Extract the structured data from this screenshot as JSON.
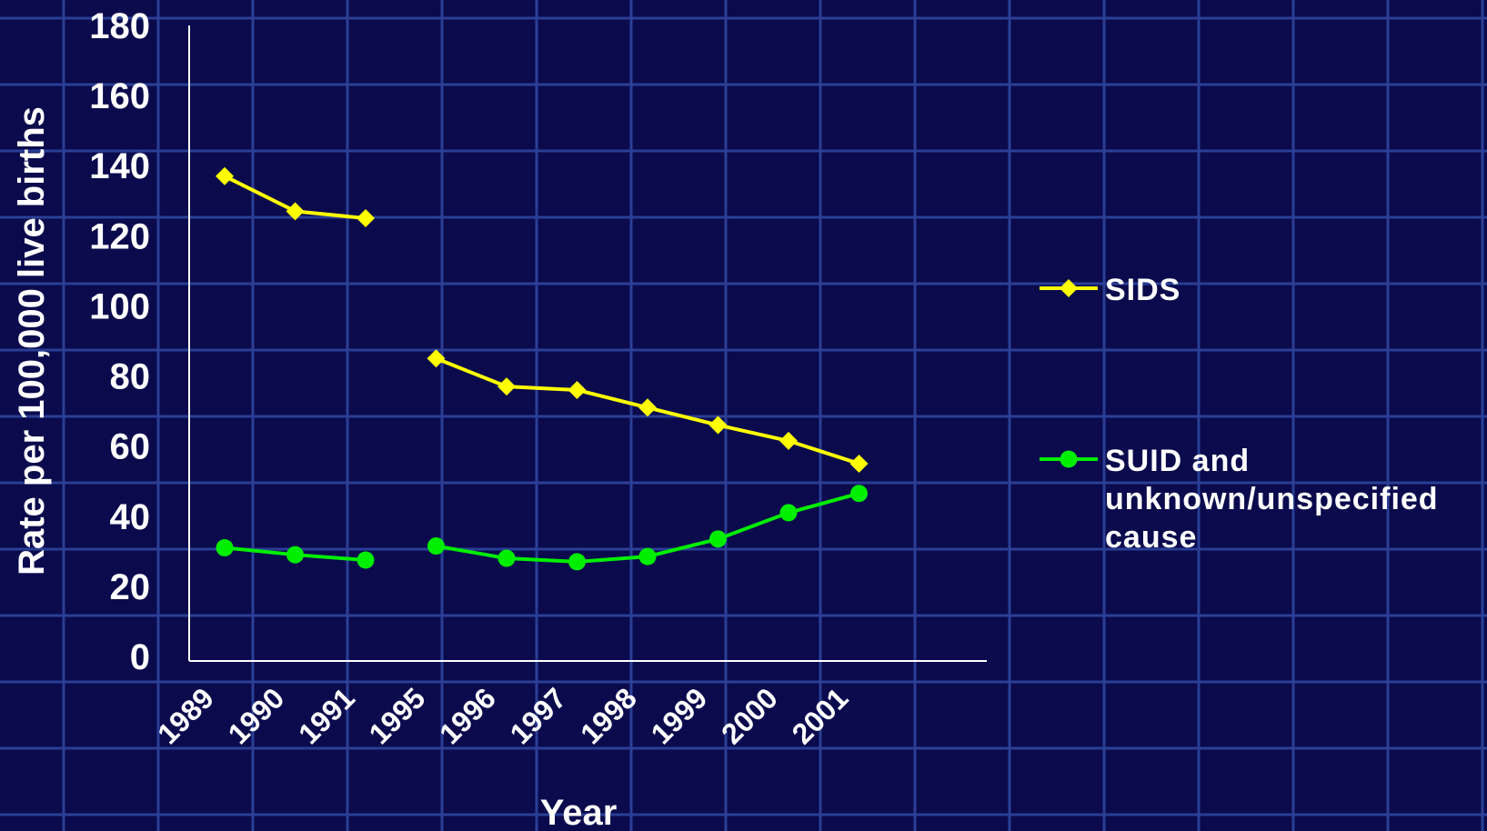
{
  "chart_data": {
    "type": "line",
    "title": "",
    "xlabel": "Year",
    "ylabel": "Rate per 100,000 live births",
    "ylim": [
      0,
      180
    ],
    "yticks": [
      0,
      20,
      40,
      60,
      80,
      100,
      120,
      140,
      160,
      180
    ],
    "categories": [
      "1989",
      "1990",
      "1991",
      "1995",
      "1996",
      "1997",
      "1998",
      "1999",
      "2000",
      "2001"
    ],
    "series": [
      {
        "name": "SIDS",
        "color": "#ffff00",
        "marker": "diamond",
        "segments": [
          [
            [
              1989,
              137
            ],
            [
              1990,
              127
            ],
            [
              1991,
              125
            ]
          ],
          [
            [
              1995,
              85
            ],
            [
              1996,
              77
            ],
            [
              1997,
              76
            ],
            [
              1998,
              71
            ],
            [
              1999,
              66
            ],
            [
              2000,
              61.5
            ],
            [
              2001,
              55
            ]
          ]
        ]
      },
      {
        "name": "SUID and unknown/unspecified cause",
        "name_lines": [
          "SUID and",
          "unknown/unspecified",
          "cause"
        ],
        "color": "#00ee00",
        "marker": "circle",
        "segments": [
          [
            [
              1989,
              31
            ],
            [
              1990,
              29
            ],
            [
              1991,
              27.5
            ]
          ],
          [
            [
              1995,
              31.5
            ],
            [
              1996,
              28
            ],
            [
              1997,
              27
            ],
            [
              1998,
              28.5
            ],
            [
              1999,
              33.5
            ],
            [
              2000,
              41
            ],
            [
              2001,
              46.5
            ]
          ]
        ]
      }
    ],
    "grid": true,
    "legend": "right"
  }
}
